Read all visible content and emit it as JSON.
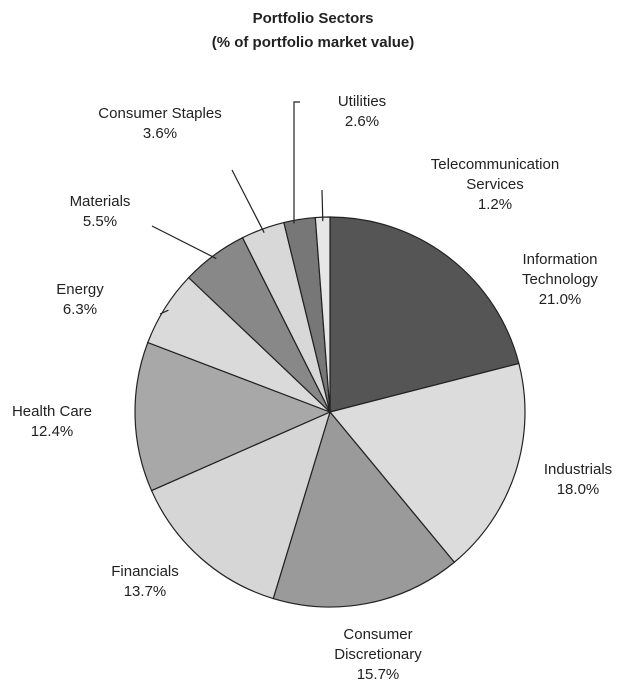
{
  "chart_data": {
    "type": "pie",
    "title": "Portfolio Sectors",
    "subtitle": "(% of portfolio market value)",
    "categories": [
      "Information Technology",
      "Industrials",
      "Consumer Discretionary",
      "Financials",
      "Health Care",
      "Energy",
      "Materials",
      "Consumer Staples",
      "Utilities",
      "Telecommunication Services"
    ],
    "values": [
      21.0,
      18.0,
      15.7,
      13.7,
      12.4,
      6.3,
      5.5,
      3.6,
      2.6,
      1.2
    ],
    "value_labels": [
      "21.0%",
      "18.0%",
      "15.7%",
      "13.7%",
      "12.4%",
      "6.3%",
      "5.5%",
      "3.6%",
      "2.6%",
      "1.2%"
    ],
    "colors": [
      "#555555",
      "#dcdcdc",
      "#9a9a9a",
      "#d6d6d6",
      "#a8a8a8",
      "#dadada",
      "#888888",
      "#d8d8d8",
      "#777777",
      "#e6e6e6"
    ]
  }
}
